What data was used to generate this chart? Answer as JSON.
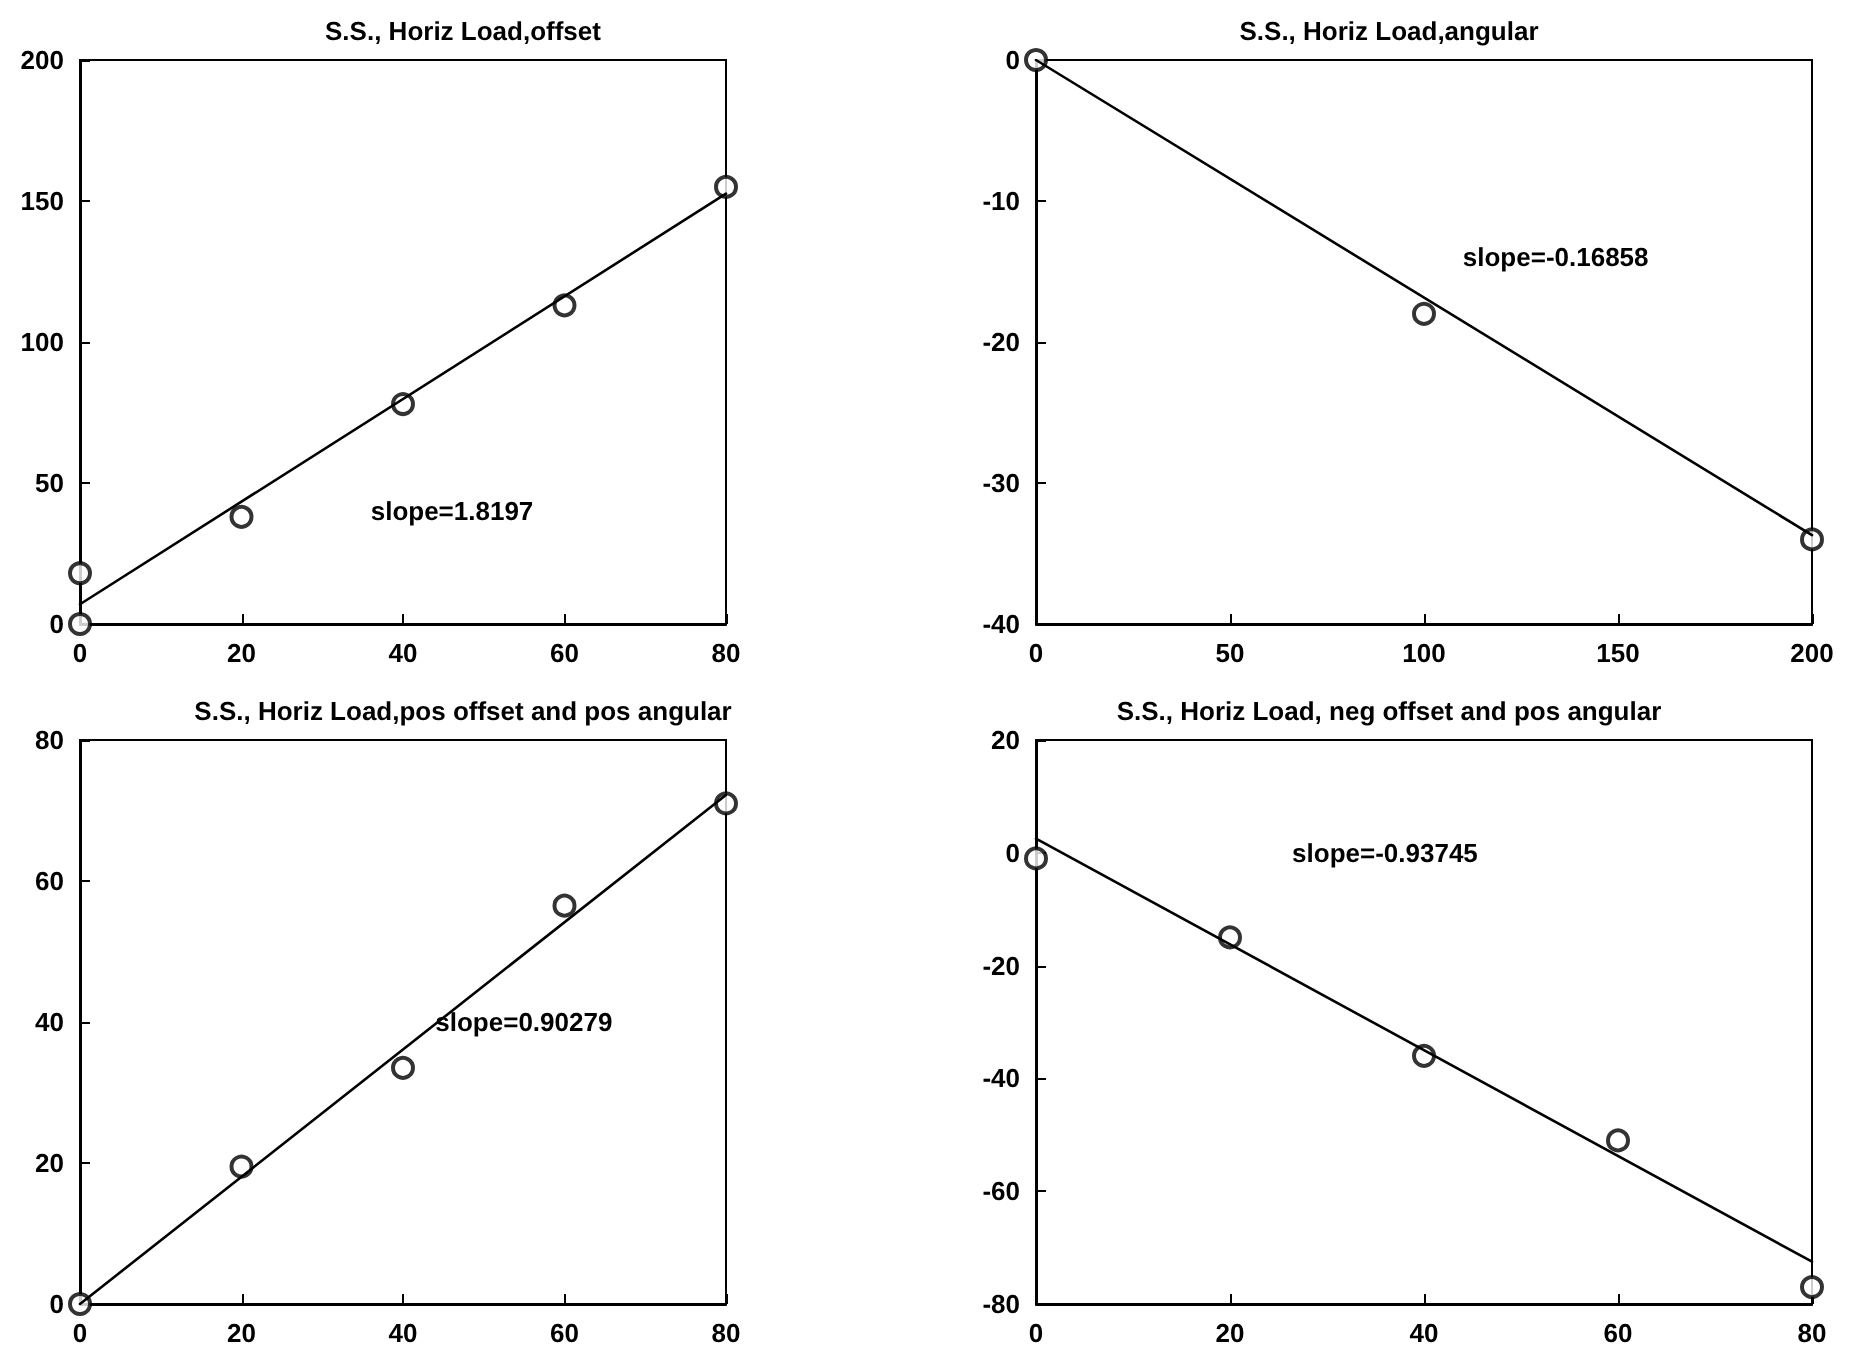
{
  "chart_data": [
    {
      "type": "scatter",
      "title": "S.S., Horiz Load,offset",
      "xlim": [
        0,
        80
      ],
      "xticks": [
        0,
        20,
        40,
        60,
        80
      ],
      "ylim": [
        0,
        200
      ],
      "yticks": [
        0,
        50,
        100,
        150,
        200
      ],
      "grid": false,
      "annotations": [
        "slope=1.8197"
      ],
      "series": [
        {
          "type": "scatter",
          "marker": "circle",
          "color": "#000000",
          "x": [
            0,
            0,
            20,
            40,
            60,
            80
          ],
          "values": [
            18,
            0,
            38,
            78,
            113,
            155
          ]
        },
        {
          "type": "line",
          "marker": "none",
          "line_style": "solid",
          "color": "#000000",
          "x": [
            0,
            80
          ],
          "values": [
            7,
            152.6
          ]
        }
      ]
    },
    {
      "type": "scatter",
      "title": "S.S., Horiz Load,angular",
      "xlim": [
        0,
        200
      ],
      "xticks": [
        0,
        50,
        100,
        150,
        200
      ],
      "ylim": [
        -40,
        0
      ],
      "yticks": [
        -40,
        -30,
        -20,
        -10,
        0
      ],
      "grid": false,
      "annotations": [
        "slope=-0.16858"
      ],
      "series": [
        {
          "type": "scatter",
          "marker": "circle",
          "color": "#000000",
          "x": [
            0,
            100,
            200
          ],
          "values": [
            0,
            -18,
            -34
          ]
        },
        {
          "type": "line",
          "marker": "none",
          "line_style": "solid",
          "color": "#000000",
          "x": [
            0,
            200
          ],
          "values": [
            0,
            -33.7
          ]
        }
      ]
    },
    {
      "type": "scatter",
      "title": "S.S., Horiz Load,pos offset and pos angular",
      "xlim": [
        0,
        80
      ],
      "xticks": [
        0,
        20,
        40,
        60,
        80
      ],
      "ylim": [
        0,
        80
      ],
      "yticks": [
        0,
        20,
        40,
        60,
        80
      ],
      "grid": false,
      "annotations": [
        "slope=0.90279"
      ],
      "series": [
        {
          "type": "scatter",
          "marker": "circle",
          "color": "#000000",
          "x": [
            0,
            20,
            40,
            60,
            80
          ],
          "values": [
            0,
            19.5,
            33.5,
            56.5,
            71
          ]
        },
        {
          "type": "line",
          "marker": "none",
          "line_style": "solid",
          "color": "#000000",
          "x": [
            0,
            80
          ],
          "values": [
            0,
            72.2
          ]
        }
      ]
    },
    {
      "type": "scatter",
      "title": "S.S., Horiz Load, neg offset and pos angular",
      "xlim": [
        0,
        80
      ],
      "xticks": [
        0,
        20,
        40,
        60,
        80
      ],
      "ylim": [
        -80,
        20
      ],
      "yticks": [
        -80,
        -60,
        -40,
        -20,
        0,
        20
      ],
      "grid": false,
      "annotations": [
        "slope=-0.93745"
      ],
      "series": [
        {
          "type": "scatter",
          "marker": "circle",
          "color": "#000000",
          "x": [
            0,
            20,
            40,
            60,
            80
          ],
          "values": [
            -1,
            -15,
            -36,
            -51,
            -77
          ]
        },
        {
          "type": "line",
          "marker": "none",
          "line_style": "solid",
          "color": "#000000",
          "x": [
            0,
            80
          ],
          "values": [
            2.5,
            -72.5
          ]
        }
      ]
    }
  ]
}
